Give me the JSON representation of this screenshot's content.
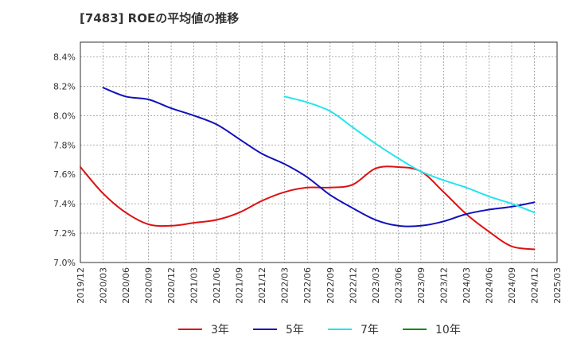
{
  "chart_data": {
    "type": "line",
    "title": "[7483]  ROEの平均値の推移",
    "xlabel": "",
    "ylabel": "",
    "x": [
      "2019/12",
      "2020/03",
      "2020/06",
      "2020/09",
      "2020/12",
      "2021/03",
      "2021/06",
      "2021/09",
      "2021/12",
      "2022/03",
      "2022/06",
      "2022/09",
      "2022/12",
      "2023/03",
      "2023/06",
      "2023/09",
      "2023/12",
      "2024/03",
      "2024/06",
      "2024/09",
      "2024/12",
      "2025/03"
    ],
    "ylim": [
      7.0,
      8.5
    ],
    "y_ticks": [
      "7.0%",
      "7.2%",
      "7.4%",
      "7.6%",
      "7.8%",
      "8.0%",
      "8.2%",
      "8.4%"
    ],
    "y_tick_values": [
      7.0,
      7.2,
      7.4,
      7.6,
      7.8,
      8.0,
      8.2,
      8.4
    ],
    "grid": true,
    "legend_position": "bottom",
    "series": [
      {
        "name": "3年",
        "color": "#dd1111",
        "values": [
          7.65,
          7.47,
          7.34,
          7.26,
          7.25,
          7.27,
          7.29,
          7.34,
          7.42,
          7.48,
          7.51,
          7.51,
          7.53,
          7.64,
          7.65,
          7.62,
          7.48,
          7.33,
          7.21,
          7.11,
          7.09,
          null
        ]
      },
      {
        "name": "5年",
        "color": "#1111bb",
        "values": [
          null,
          8.19,
          8.13,
          8.11,
          8.05,
          8.0,
          7.94,
          7.84,
          7.74,
          7.67,
          7.58,
          7.46,
          7.37,
          7.29,
          7.25,
          7.25,
          7.28,
          7.33,
          7.36,
          7.38,
          7.41,
          null
        ]
      },
      {
        "name": "7年",
        "color": "#22e5ee",
        "values": [
          null,
          null,
          null,
          null,
          null,
          null,
          null,
          null,
          null,
          8.13,
          8.09,
          8.03,
          7.92,
          7.81,
          7.71,
          7.62,
          7.56,
          7.51,
          7.45,
          7.4,
          7.34,
          null
        ]
      },
      {
        "name": "10年",
        "color": "#118811",
        "values": [
          null,
          null,
          null,
          null,
          null,
          null,
          null,
          null,
          null,
          null,
          null,
          null,
          null,
          null,
          null,
          null,
          null,
          null,
          null,
          null,
          null,
          null
        ]
      }
    ]
  }
}
